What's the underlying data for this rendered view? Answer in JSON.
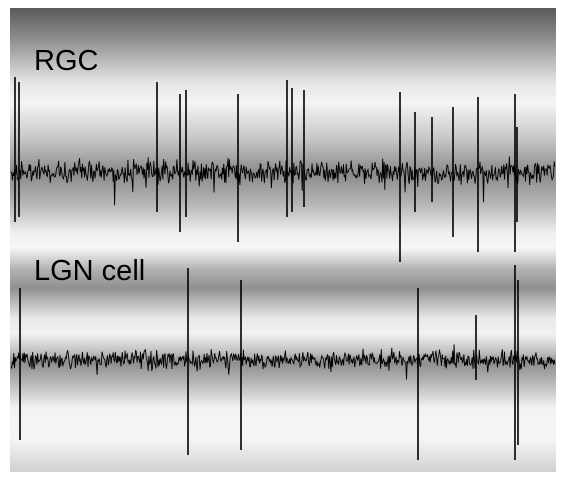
{
  "panels": [
    {
      "label": "RGC"
    },
    {
      "label": "LGN cell"
    }
  ]
}
